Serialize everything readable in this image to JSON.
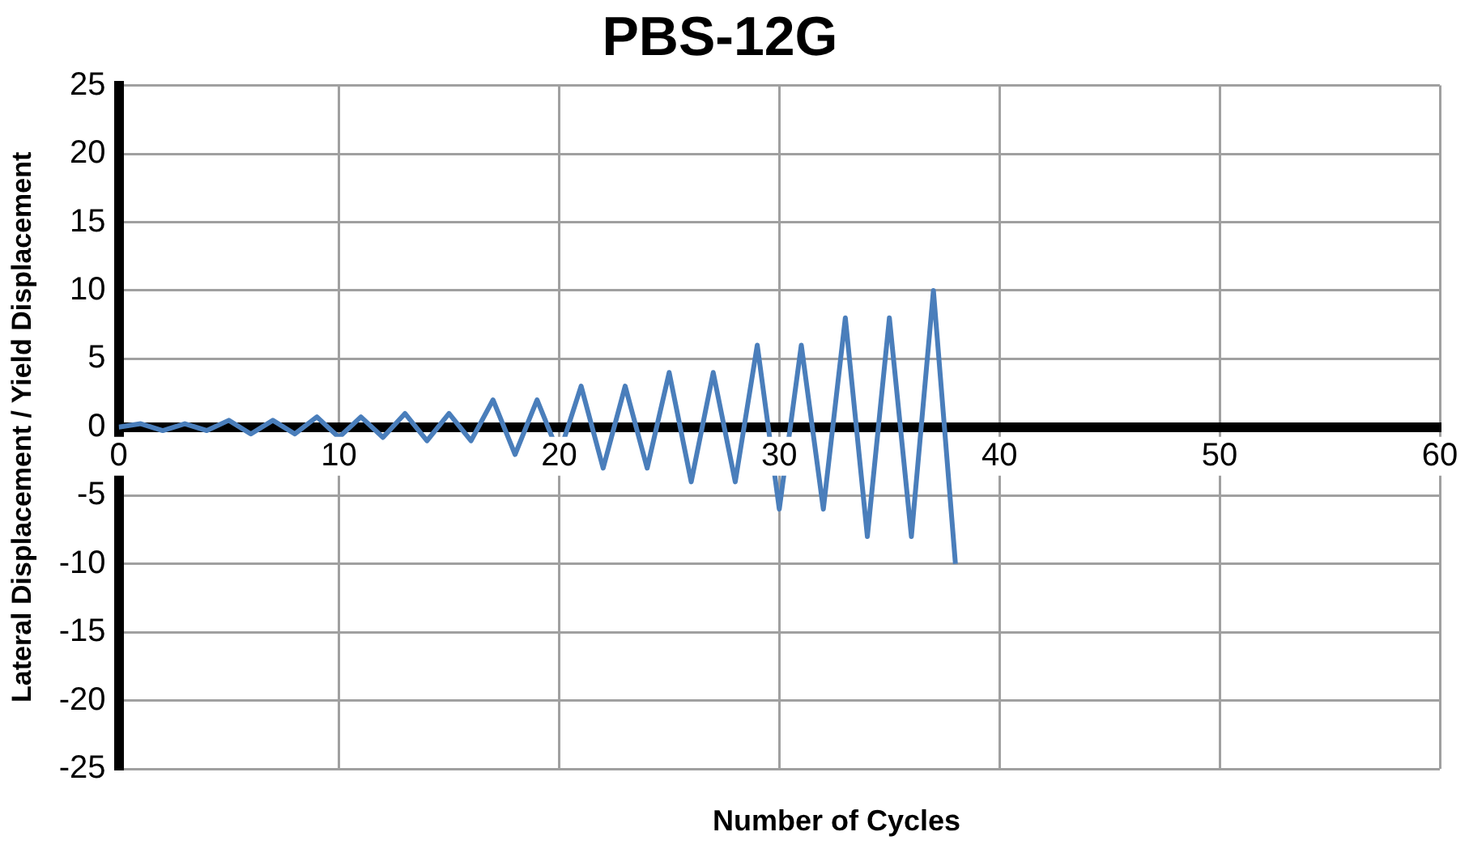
{
  "chart_data": {
    "type": "line",
    "title": "PBS-12G",
    "xlabel": "Number of Cycles",
    "ylabel": "Lateral Displacement / Yield Displacement",
    "x": [
      0,
      1,
      2,
      3,
      4,
      5,
      6,
      7,
      8,
      9,
      10,
      11,
      12,
      13,
      14,
      15,
      16,
      17,
      18,
      19,
      20,
      21,
      22,
      23,
      24,
      25,
      26,
      27,
      28,
      29,
      30,
      31,
      32,
      33,
      34,
      35,
      36,
      37,
      38
    ],
    "series": [
      {
        "color": "#4a7ebb",
        "values": [
          0,
          0.25,
          -0.25,
          0.25,
          -0.25,
          0.5,
          -0.5,
          0.5,
          -0.5,
          0.75,
          -0.75,
          0.75,
          -0.75,
          1,
          -1,
          1,
          -1,
          2,
          -2,
          2,
          -2,
          3,
          -3,
          3,
          -3,
          4,
          -4,
          4,
          -4,
          6,
          -6,
          6,
          -6,
          8,
          -8,
          8,
          -8,
          10,
          -10
        ]
      }
    ],
    "xlim": [
      0,
      60
    ],
    "xticks": [
      0,
      10,
      20,
      30,
      40,
      50,
      60
    ],
    "ylim": [
      -25,
      25
    ],
    "yticks": [
      -25,
      -20,
      -15,
      -10,
      -5,
      0,
      5,
      10,
      15,
      20,
      25
    ],
    "grid": true,
    "legend": false,
    "marker": "none",
    "line_style": "solid"
  }
}
